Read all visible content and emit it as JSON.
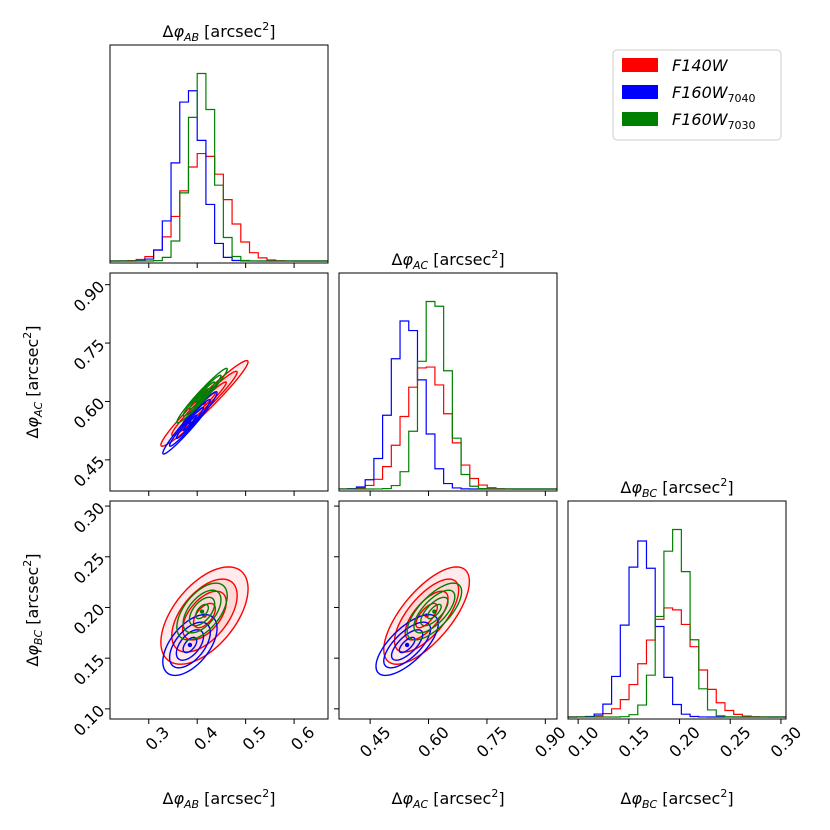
{
  "chart_data": {
    "type": "corner",
    "params": [
      {
        "key": "AB",
        "label": "Δφ_AB [arcsec²]",
        "lim": [
          0.22,
          0.67
        ],
        "ticks": [
          0.3,
          0.4,
          0.5,
          0.6
        ],
        "tick_labels": [
          "0.3",
          "0.4",
          "0.5",
          "0.6"
        ]
      },
      {
        "key": "AC",
        "label": "Δφ_AC [arcsec²]",
        "lim": [
          0.37,
          0.93
        ],
        "ticks": [
          0.45,
          0.6,
          0.75,
          0.9
        ],
        "tick_labels": [
          "0.45",
          "0.60",
          "0.75",
          "0.90"
        ]
      },
      {
        "key": "BC",
        "label": "Δφ_BC [arcsec²]",
        "lim": [
          0.09,
          0.305
        ],
        "ticks": [
          0.1,
          0.15,
          0.2,
          0.25,
          0.3
        ],
        "tick_labels": [
          "0.10",
          "0.15",
          "0.20",
          "0.25",
          "0.30"
        ]
      }
    ],
    "axis_labels": {
      "AB": {
        "main": "Δφ",
        "sub": "AB",
        "unit_pre": " [arcsec",
        "unit_sup": "2",
        "unit_post": "]"
      },
      "AC": {
        "main": "Δφ",
        "sub": "AC",
        "unit_pre": " [arcsec",
        "unit_sup": "2",
        "unit_post": "]"
      },
      "BC": {
        "main": "Δφ",
        "sub": "BC",
        "unit_pre": " [arcsec",
        "unit_sup": "2",
        "unit_post": "]"
      }
    },
    "series": [
      {
        "name": "F140W",
        "name_main": "F140W",
        "name_sub": "",
        "color": "#ff0000",
        "mean": {
          "AB": 0.415,
          "AC": 0.595,
          "BC": 0.192
        },
        "sd": {
          "AB": 0.045,
          "AC": 0.055,
          "BC": 0.024
        },
        "corr": {
          "AB_AC": 0.97,
          "AB_BC": 0.55,
          "AC_BC": 0.7
        },
        "filled": true
      },
      {
        "name": "F160W_7040",
        "name_main": "F160W",
        "name_sub": "7040",
        "color": "#0000ff",
        "mean": {
          "AB": 0.385,
          "AC": 0.545,
          "BC": 0.163
        },
        "sd": {
          "AB": 0.028,
          "AC": 0.04,
          "BC": 0.015
        },
        "corr": {
          "AB_AC": 0.97,
          "AB_BC": 0.55,
          "AC_BC": 0.7
        },
        "filled": false
      },
      {
        "name": "F160W_7030",
        "name_main": "F160W",
        "name_sub": "7030",
        "color": "#008000",
        "mean": {
          "AB": 0.41,
          "AC": 0.615,
          "BC": 0.196
        },
        "sd": {
          "AB": 0.026,
          "AC": 0.035,
          "BC": 0.014
        },
        "corr": {
          "AB_AC": 0.97,
          "AB_BC": 0.55,
          "AC_BC": 0.7
        },
        "filled": false
      }
    ],
    "histogram_bins": 25,
    "contour_levels_sigma": [
      0.5,
      1.0,
      1.5,
      2.0
    ],
    "legend_position": "top-right"
  }
}
